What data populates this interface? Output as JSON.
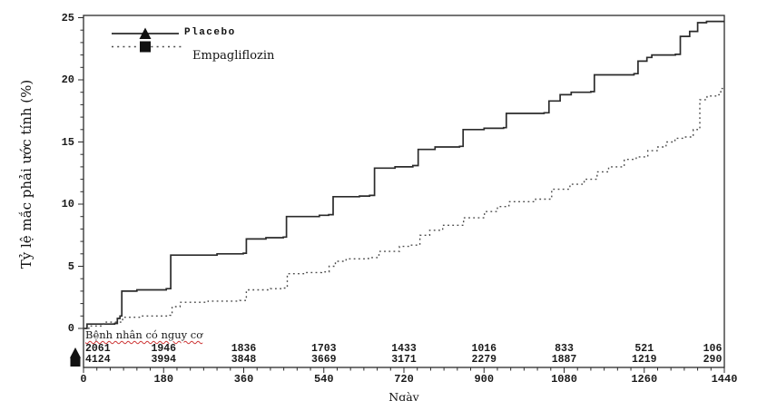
{
  "figure": {
    "background": "#ffffff",
    "axis_color": "#2b2b2b",
    "text_color": "#1a1a1a",
    "spellcheck_underline_color": "#cc3333"
  },
  "chart_data": {
    "type": "line",
    "subtype": "cumulative-incidence-step-curve",
    "title": "",
    "ylabel": "Tỷ lệ mắc phải ước tính (%)",
    "xlabel": "Ngày",
    "ylim": [
      0,
      25
    ],
    "xlim": [
      0,
      1440
    ],
    "y_ticks": [
      0,
      5,
      10,
      15,
      20,
      25
    ],
    "x_ticks": [
      0,
      180,
      360,
      540,
      720,
      900,
      1080,
      1260,
      1440
    ],
    "y_minor_step": 1,
    "x_minor_step": 30,
    "grid": false,
    "legend_position": "top-left-inside",
    "series": [
      {
        "name": "Placebo",
        "line": "solid",
        "marker": "triangle",
        "color": "#2b2b2b",
        "points": [
          [
            0,
            0
          ],
          [
            8,
            0.35
          ],
          [
            70,
            0.4
          ],
          [
            76,
            0.8
          ],
          [
            82,
            1.0
          ],
          [
            86,
            3.0
          ],
          [
            120,
            3.1
          ],
          [
            186,
            3.2
          ],
          [
            196,
            5.9
          ],
          [
            300,
            6.0
          ],
          [
            359,
            6.05
          ],
          [
            366,
            7.2
          ],
          [
            410,
            7.3
          ],
          [
            449,
            7.35
          ],
          [
            456,
            9.0
          ],
          [
            530,
            9.1
          ],
          [
            551,
            9.15
          ],
          [
            561,
            10.6
          ],
          [
            620,
            10.65
          ],
          [
            643,
            10.7
          ],
          [
            654,
            12.9
          ],
          [
            700,
            13.0
          ],
          [
            740,
            13.1
          ],
          [
            752,
            14.4
          ],
          [
            790,
            14.6
          ],
          [
            845,
            14.65
          ],
          [
            853,
            16.0
          ],
          [
            900,
            16.1
          ],
          [
            944,
            16.15
          ],
          [
            950,
            17.3
          ],
          [
            1035,
            17.35
          ],
          [
            1046,
            18.3
          ],
          [
            1071,
            18.8
          ],
          [
            1096,
            19.0
          ],
          [
            1140,
            19.05
          ],
          [
            1148,
            20.4
          ],
          [
            1237,
            20.5
          ],
          [
            1246,
            21.5
          ],
          [
            1266,
            21.8
          ],
          [
            1277,
            22.0
          ],
          [
            1330,
            22.05
          ],
          [
            1341,
            23.5
          ],
          [
            1362,
            23.9
          ],
          [
            1380,
            24.6
          ],
          [
            1400,
            24.7
          ],
          [
            1440,
            24.7
          ]
        ]
      },
      {
        "name": "Empagliflozin",
        "line": "dotted",
        "marker": "square",
        "color": "#4a4a4a",
        "points": [
          [
            0,
            0
          ],
          [
            12,
            0.2
          ],
          [
            45,
            0.5
          ],
          [
            88,
            0.9
          ],
          [
            130,
            1.0
          ],
          [
            194,
            1.05
          ],
          [
            199,
            1.75
          ],
          [
            217,
            2.1
          ],
          [
            280,
            2.2
          ],
          [
            351,
            2.25
          ],
          [
            366,
            3.1
          ],
          [
            420,
            3.2
          ],
          [
            447,
            3.25
          ],
          [
            458,
            4.4
          ],
          [
            500,
            4.5
          ],
          [
            535,
            4.55
          ],
          [
            552,
            5.0
          ],
          [
            566,
            5.4
          ],
          [
            590,
            5.6
          ],
          [
            640,
            5.7
          ],
          [
            664,
            6.2
          ],
          [
            710,
            6.6
          ],
          [
            733,
            6.7
          ],
          [
            756,
            7.5
          ],
          [
            778,
            7.9
          ],
          [
            807,
            8.3
          ],
          [
            854,
            8.9
          ],
          [
            901,
            9.4
          ],
          [
            930,
            9.8
          ],
          [
            956,
            10.2
          ],
          [
            1016,
            10.4
          ],
          [
            1052,
            11.2
          ],
          [
            1093,
            11.6
          ],
          [
            1125,
            12.0
          ],
          [
            1154,
            12.6
          ],
          [
            1180,
            13.0
          ],
          [
            1215,
            13.6
          ],
          [
            1242,
            13.8
          ],
          [
            1268,
            14.3
          ],
          [
            1289,
            14.6
          ],
          [
            1309,
            15.0
          ],
          [
            1329,
            15.3
          ],
          [
            1350,
            15.4
          ],
          [
            1370,
            16.0
          ],
          [
            1385,
            18.4
          ],
          [
            1401,
            18.7
          ],
          [
            1425,
            18.8
          ],
          [
            1432,
            19.3
          ],
          [
            1440,
            19.4
          ]
        ]
      }
    ],
    "at_risk": {
      "header": "Bệnh nhân có nguy cơ",
      "x_positions": [
        0,
        180,
        360,
        540,
        720,
        900,
        1080,
        1260,
        1440
      ],
      "rows": [
        {
          "series": "Placebo",
          "marker": "triangle",
          "counts": [
            "2061",
            "1946",
            "1836",
            "1703",
            "1433",
            "1016",
            "833",
            "521",
            "106"
          ]
        },
        {
          "series": "Empagliflozin",
          "marker": "square",
          "counts": [
            "4124",
            "3994",
            "3848",
            "3669",
            "3171",
            "2279",
            "1887",
            "1219",
            "290"
          ]
        }
      ]
    }
  }
}
